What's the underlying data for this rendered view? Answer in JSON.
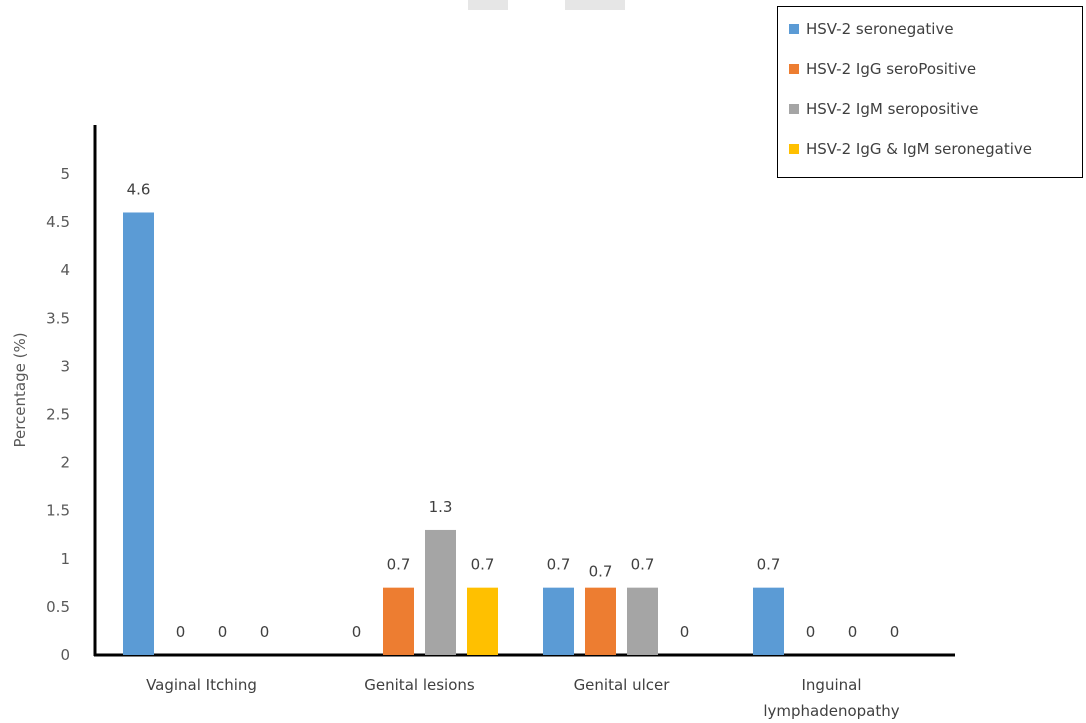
{
  "chart_data": {
    "type": "bar",
    "title": "",
    "xlabel": "",
    "ylabel": "Percentage (%)",
    "ylim": [
      0,
      5
    ],
    "yticks": [
      "0",
      "0.5",
      "1",
      "1.5",
      "2",
      "2.5",
      "3",
      "3.5",
      "4",
      "4.5",
      "5"
    ],
    "categories": [
      [
        "Vaginal Itching"
      ],
      [
        "Genital lesions"
      ],
      [
        "Genital ulcer"
      ],
      [
        "Inguinal",
        "lymphadenopathy"
      ]
    ],
    "series": [
      {
        "name": "HSV-2 seronegative",
        "color": "#5b9bd5",
        "values": [
          4.6,
          0,
          0.7,
          0.7
        ],
        "labels": [
          "4.6",
          "0",
          "0.7",
          "0.7"
        ]
      },
      {
        "name": "HSV-2 IgG seroPositive",
        "color": "#ed7d31",
        "values": [
          0,
          0.7,
          0.7,
          0
        ],
        "labels": [
          "0",
          "0.7",
          "0.7",
          "0"
        ]
      },
      {
        "name": "HSV-2 IgM seropositive",
        "color": "#a5a5a5",
        "values": [
          0,
          1.3,
          0.7,
          0
        ],
        "labels": [
          "0",
          "1.3",
          "0.7",
          "0"
        ]
      },
      {
        "name": "HSV-2 IgG & IgM seronegative",
        "color": "#ffc000",
        "values": [
          0,
          0.7,
          0,
          0
        ],
        "labels": [
          "0",
          "0.7",
          "0",
          "0"
        ]
      }
    ],
    "grid": false,
    "legend_position": "top-right"
  }
}
